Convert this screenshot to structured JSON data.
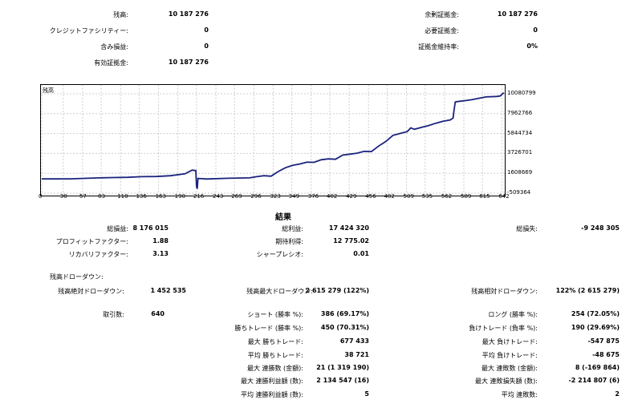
{
  "summary": {
    "left": [
      {
        "label": "残高:",
        "value": "10 187 276"
      },
      {
        "label": "クレジットファシリティー:",
        "value": "0"
      },
      {
        "label": "含み損益:",
        "value": "0"
      },
      {
        "label": "有効証拠金:",
        "value": "10 187 276"
      }
    ],
    "right": [
      {
        "label": "余剰証拠金:",
        "value": "10 187 276"
      },
      {
        "label": "必要証拠金:",
        "value": "0"
      },
      {
        "label": "証拠金維持率:",
        "value": "0%"
      }
    ]
  },
  "chart_data": {
    "type": "line",
    "legend": "残高",
    "x_ticks": [
      "0",
      "30",
      "57",
      "83",
      "110",
      "136",
      "163",
      "190",
      "216",
      "243",
      "269",
      "296",
      "323",
      "349",
      "376",
      "402",
      "429",
      "456",
      "482",
      "509",
      "535",
      "562",
      "589",
      "615",
      "642"
    ],
    "y_ticks": [
      "10080799",
      "7962766",
      "5844734",
      "3726701",
      "1608669",
      "-509364"
    ],
    "xlim": [
      0,
      645
    ],
    "ylim": [
      -509364,
      10080799
    ],
    "series": [
      {
        "name": "残高",
        "color": "#1a237e",
        "x": [
          0,
          20,
          40,
          60,
          80,
          100,
          120,
          140,
          160,
          180,
          200,
          210,
          215,
          216,
          217,
          218,
          230,
          260,
          290,
          300,
          310,
          320,
          330,
          340,
          350,
          360,
          370,
          380,
          390,
          400,
          410,
          420,
          430,
          440,
          450,
          460,
          470,
          480,
          490,
          500,
          510,
          515,
          520,
          530,
          540,
          550,
          560,
          570,
          574,
          575,
          577,
          580,
          590,
          600,
          610,
          620,
          635,
          640,
          643,
          645
        ],
        "y": [
          1010000,
          1010000,
          1020000,
          1070000,
          1120000,
          1160000,
          1180000,
          1250000,
          1270000,
          1350000,
          1560000,
          1950000,
          1900000,
          200000,
          -50000,
          1060000,
          1000000,
          1080000,
          1120000,
          1250000,
          1350000,
          1300000,
          1800000,
          2200000,
          2450000,
          2600000,
          2800000,
          2780000,
          3050000,
          3150000,
          3100000,
          3550000,
          3650000,
          3750000,
          3950000,
          3920000,
          4500000,
          5000000,
          5650000,
          5850000,
          6050000,
          6450000,
          6300000,
          6500000,
          6700000,
          6950000,
          7150000,
          7300000,
          7500000,
          8150000,
          9200000,
          9250000,
          9350000,
          9450000,
          9600000,
          9750000,
          9800000,
          9850000,
          10080000,
          10187276
        ]
      }
    ]
  },
  "results": {
    "title": "結果",
    "col1": [
      {
        "label": "総損益:",
        "value": "8 176 015"
      },
      {
        "label": "プロフィットファクター:",
        "value": "1.88"
      },
      {
        "label": "リカバリファクター:",
        "value": "3.13"
      }
    ],
    "col2": [
      {
        "label": "総利益:",
        "value": "17 424 320"
      },
      {
        "label": "期待利得:",
        "value": "12 775.02"
      },
      {
        "label": "シャープレシオ:",
        "value": "0.01"
      }
    ],
    "col3": [
      {
        "label": "総損失:",
        "value": "-9 248 305"
      }
    ],
    "drawdown_header": "残高ドローダウン:",
    "dd_abs": {
      "label": "残高絶対ドローダウン:",
      "value": "1 452 535"
    },
    "dd_max": {
      "label": "残高最大ドローダウン:",
      "value": "2 615 279 (122%)"
    },
    "dd_rel": {
      "label": "残高相対ドローダウン:",
      "value": "122% (2 615 279)"
    },
    "trades": {
      "label": "取引数:",
      "value": "640"
    },
    "mid": [
      {
        "label": "ショート (勝率 %):",
        "value": "386 (69.17%)"
      },
      {
        "label": "勝ちトレード (勝率 %):",
        "value": "450 (70.31%)"
      },
      {
        "label": "最大 勝ちトレード:",
        "value": "677 433"
      },
      {
        "label": "平均 勝ちトレード:",
        "value": "38 721"
      },
      {
        "label": "最大 連勝数 (金額):",
        "value": "21 (1 319 190)"
      },
      {
        "label": "最大 連勝利益額 (数):",
        "value": "2 134 547 (16)"
      },
      {
        "label": "平均 連勝利益額 (数):",
        "value": "5"
      }
    ],
    "right": [
      {
        "label": "ロング (勝率 %):",
        "value": "254 (72.05%)"
      },
      {
        "label": "負けトレード (負率 %):",
        "value": "190 (29.69%)"
      },
      {
        "label": "最大 負けトレード:",
        "value": "-547 875"
      },
      {
        "label": "平均 負けトレード:",
        "value": "-48 675"
      },
      {
        "label": "最大 連敗数 (金額):",
        "value": "8 (-169 864)"
      },
      {
        "label": "最大 連敗損失額 (数):",
        "value": "-2 214 807 (6)"
      },
      {
        "label": "平均 連敗数:",
        "value": "2"
      }
    ]
  }
}
